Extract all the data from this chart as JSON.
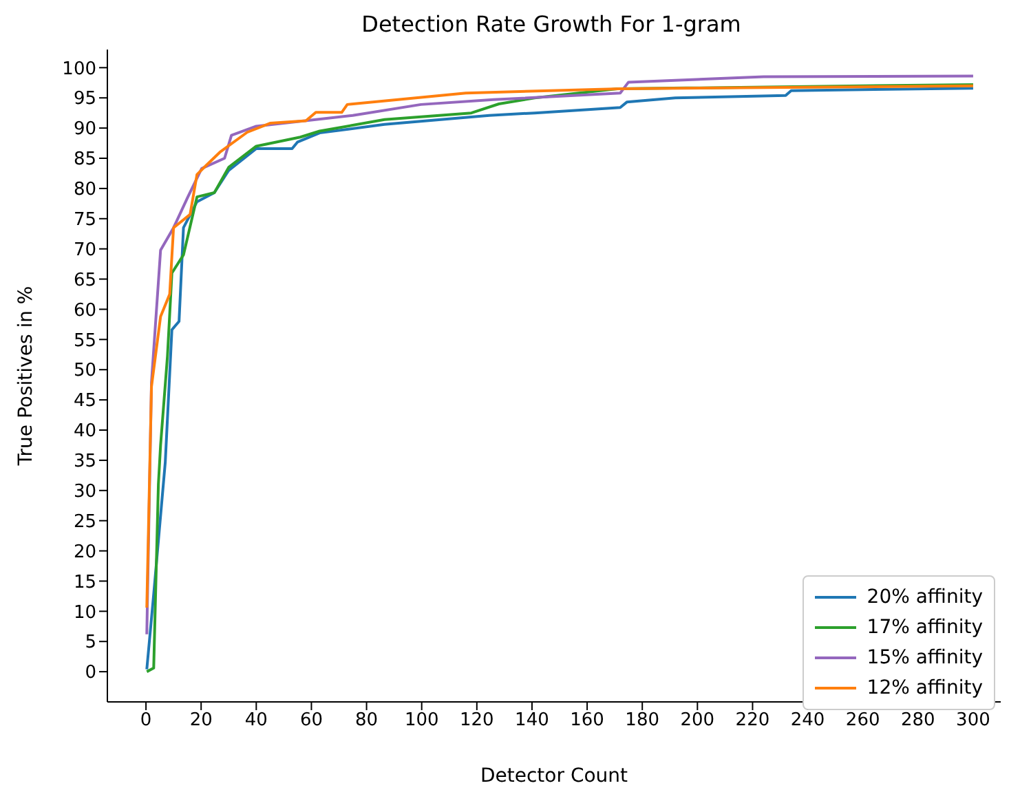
{
  "chart_data": {
    "type": "line",
    "title": "Detection Rate Growth For 1-gram",
    "xlabel": "Detector Count",
    "ylabel": "True Positives in %",
    "xlim": [
      -14,
      310
    ],
    "ylim": [
      -5,
      103
    ],
    "xticks": [
      0,
      20,
      40,
      60,
      80,
      100,
      120,
      140,
      160,
      180,
      200,
      220,
      240,
      260,
      280,
      300
    ],
    "yticks": [
      0,
      5,
      10,
      15,
      20,
      25,
      30,
      35,
      40,
      45,
      50,
      55,
      60,
      65,
      70,
      75,
      80,
      85,
      90,
      95,
      100
    ],
    "grid": false,
    "legend": "bottom right",
    "marker": "none",
    "line_style": "solid",
    "series": [
      {
        "name": "20% affinity",
        "color": "#1f77b4",
        "x": [
          0.3,
          2.8,
          7,
          9.4,
          12,
          13.6,
          18.5,
          24.8,
          30,
          40,
          53,
          55,
          63,
          86.5,
          124.5,
          141,
          172,
          174.4,
          192,
          232,
          234,
          300
        ],
        "values": [
          0.4,
          12.8,
          34.7,
          56.6,
          58,
          73.5,
          77.8,
          79.3,
          83,
          86.6,
          86.6,
          87.7,
          89.2,
          90.6,
          92.1,
          92.5,
          93.4,
          94.3,
          95,
          95.4,
          96.2,
          96.6
        ]
      },
      {
        "name": "17% affinity",
        "color": "#2ca02c",
        "x": [
          0.3,
          2.8,
          4.5,
          5.3,
          7.8,
          9.4,
          13.6,
          18.5,
          24.8,
          30,
          40,
          56,
          63,
          86.5,
          118,
          128,
          141,
          171,
          300
        ],
        "values": [
          0,
          0.6,
          31,
          37.5,
          52.3,
          66,
          69,
          78.6,
          79.3,
          83.5,
          87,
          88.5,
          89.5,
          91.4,
          92.5,
          94,
          95,
          96.5,
          97.2
        ]
      },
      {
        "name": "15% affinity",
        "color": "#9467bd",
        "x": [
          0.3,
          2,
          5.3,
          10,
          15.2,
          20.2,
          28.5,
          31,
          40,
          75,
          99.7,
          126,
          172,
          175,
          224,
          300
        ],
        "values": [
          6.2,
          47.9,
          69.8,
          73.5,
          78.6,
          83.3,
          85,
          88.8,
          90.3,
          92.1,
          93.9,
          94.7,
          95.8,
          97.6,
          98.5,
          98.6
        ]
      },
      {
        "name": "12% affinity",
        "color": "#ff7f0e",
        "x": [
          0.3,
          2,
          5.3,
          8.6,
          10,
          16,
          18.5,
          21.8,
          26.8,
          36.7,
          45,
          58,
          61.6,
          71,
          73,
          91.4,
          116,
          172,
          300
        ],
        "values": [
          10.6,
          47.2,
          58.8,
          62.5,
          73.5,
          75.7,
          82.3,
          83.8,
          86,
          89.3,
          90.8,
          91.2,
          92.6,
          92.6,
          93.9,
          94.7,
          95.8,
          96.5,
          97
        ]
      }
    ]
  }
}
